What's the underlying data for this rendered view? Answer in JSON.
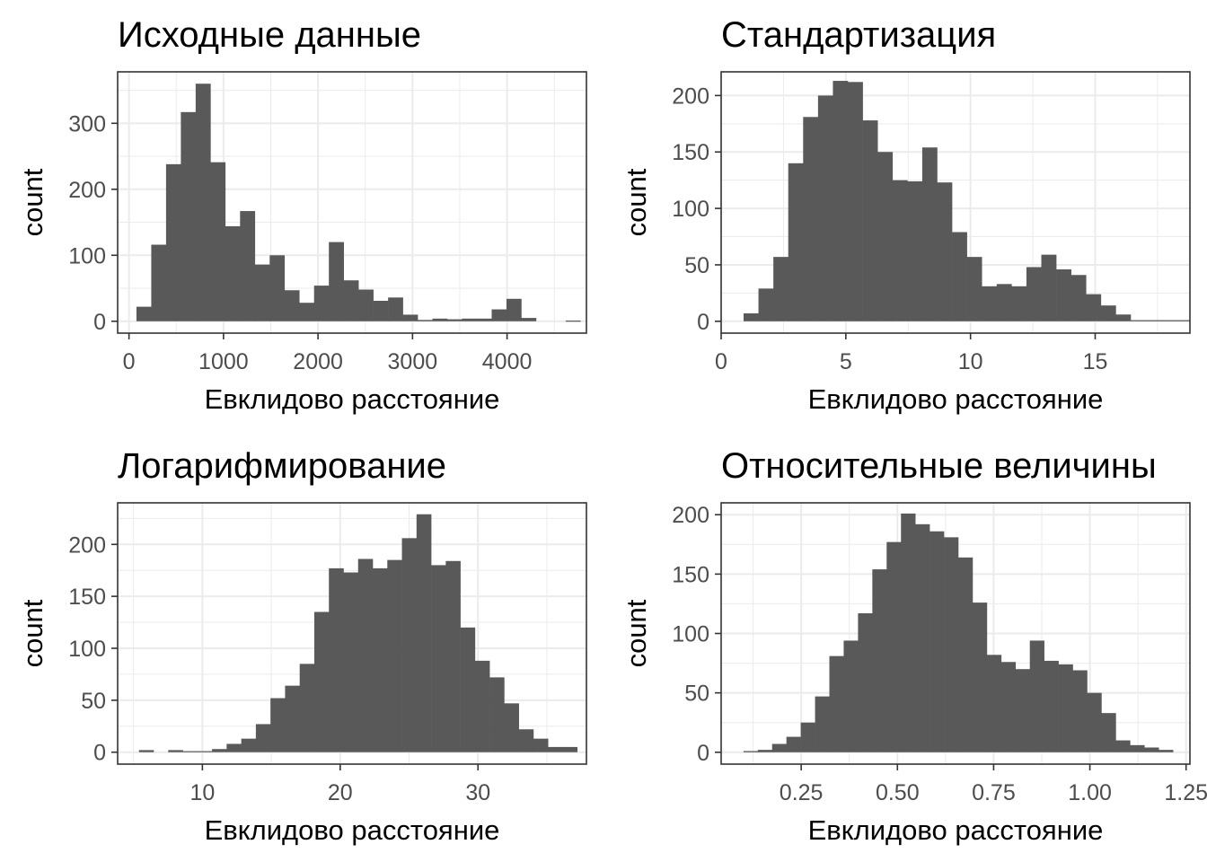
{
  "chart_data": [
    {
      "type": "bar",
      "title": "Исходные данные",
      "xlabel": "Евклидово расстояние",
      "ylabel": "count",
      "grid": true,
      "xlim": [
        -120,
        4840
      ],
      "ylim": [
        -18,
        378
      ],
      "x_ticks": [
        0,
        1000,
        2000,
        3000,
        4000
      ],
      "x_tick_labels": [
        "0",
        "1000",
        "2000",
        "3000",
        "4000"
      ],
      "y_ticks": [
        0,
        100,
        200,
        300
      ],
      "y_tick_labels": [
        "0",
        "100",
        "200",
        "300"
      ],
      "bins": {
        "start": 79,
        "width": 156.6,
        "counts": [
          22,
          116,
          238,
          317,
          360,
          241,
          144,
          167,
          86,
          100,
          47,
          28,
          54,
          120,
          62,
          48,
          31,
          36,
          10,
          2,
          4,
          3,
          4,
          4,
          18,
          34,
          5,
          0,
          0,
          1
        ]
      }
    },
    {
      "type": "bar",
      "title": "Стандартизация",
      "xlabel": "Евклидово расстояние",
      "ylabel": "count",
      "grid": true,
      "xlim": [
        0,
        18.8
      ],
      "ylim": [
        -10.5,
        221
      ],
      "x_ticks": [
        0,
        5,
        10,
        15
      ],
      "x_tick_labels": [
        "0",
        "5",
        "10",
        "15"
      ],
      "y_ticks": [
        0,
        50,
        100,
        150,
        200
      ],
      "y_tick_labels": [
        "0",
        "50",
        "100",
        "150",
        "200"
      ],
      "bins": {
        "start": 0.9,
        "width": 0.597,
        "counts": [
          7,
          29,
          57,
          140,
          181,
          200,
          213,
          212,
          178,
          150,
          125,
          124,
          154,
          123,
          79,
          57,
          31,
          33,
          31,
          48,
          59,
          46,
          41,
          24,
          14,
          6,
          1,
          1,
          1,
          1
        ]
      }
    },
    {
      "type": "bar",
      "title": "Логарифмирование",
      "xlabel": "Евклидово расстояние",
      "ylabel": "count",
      "grid": true,
      "xlim": [
        3.85,
        37.87
      ],
      "ylim": [
        -11.5,
        240
      ],
      "x_ticks": [
        10,
        20,
        30
      ],
      "x_tick_labels": [
        "10",
        "20",
        "30"
      ],
      "y_ticks": [
        0,
        50,
        100,
        150,
        200
      ],
      "y_tick_labels": [
        "0",
        "50",
        "100",
        "150",
        "200"
      ],
      "bins": {
        "start": 5.4,
        "width": 1.06,
        "counts": [
          2,
          0,
          2,
          1,
          1,
          3,
          8,
          13,
          27,
          52,
          64,
          85,
          135,
          177,
          173,
          186,
          177,
          185,
          206,
          229,
          180,
          184,
          120,
          88,
          72,
          47,
          22,
          13,
          5,
          5
        ]
      }
    },
    {
      "type": "bar",
      "title": "Относительные величины",
      "xlabel": "Евклидово расстояние",
      "ylabel": "count",
      "grid": true,
      "xlim": [
        0.042,
        1.26
      ],
      "ylim": [
        -10,
        210
      ],
      "x_ticks": [
        0.25,
        0.5,
        0.75,
        1.0,
        1.25
      ],
      "x_tick_labels": [
        "0.25",
        "0.50",
        "0.75",
        "1.00",
        "1.25"
      ],
      "y_ticks": [
        0,
        50,
        100,
        150,
        200
      ],
      "y_tick_labels": [
        "0",
        "50",
        "100",
        "150",
        "200"
      ],
      "bins": {
        "start": 0.1,
        "width": 0.0372,
        "counts": [
          1,
          2,
          7,
          13,
          25,
          47,
          81,
          94,
          117,
          154,
          177,
          201,
          192,
          186,
          181,
          164,
          126,
          82,
          76,
          70,
          94,
          77,
          74,
          69,
          50,
          33,
          10,
          6,
          4,
          2
        ]
      }
    }
  ]
}
